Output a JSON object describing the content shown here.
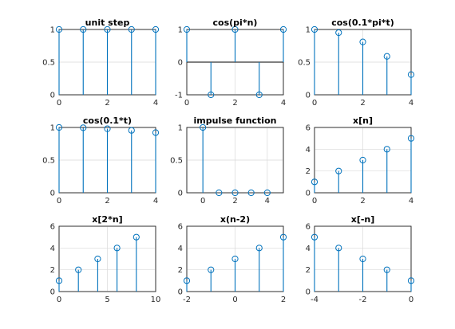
{
  "figure": {
    "stem_color": "#0072BD",
    "background": "#ffffff",
    "grid": true
  },
  "chart_data": [
    {
      "type": "stem",
      "title": "unit step",
      "x": [
        0,
        1,
        2,
        3,
        4
      ],
      "y": [
        1,
        1,
        1,
        1,
        1
      ],
      "xlim": [
        0,
        4
      ],
      "ylim": [
        0,
        1
      ],
      "xticks": [
        0,
        2,
        4
      ],
      "yticks": [
        0,
        0.5,
        1
      ],
      "xticklabels": [
        "0",
        "2",
        "4"
      ],
      "yticklabels": [
        "0",
        "0.5",
        "1"
      ]
    },
    {
      "type": "stem",
      "title": "cos(pi*n)",
      "x": [
        0,
        1,
        2,
        3,
        4
      ],
      "y": [
        1,
        -1,
        1,
        -1,
        1
      ],
      "xlim": [
        0,
        4
      ],
      "ylim": [
        -1,
        1
      ],
      "xticks": [
        0,
        2,
        4
      ],
      "yticks": [
        -1,
        0,
        1
      ],
      "xticklabels": [
        "0",
        "2",
        "4"
      ],
      "yticklabels": [
        "-1",
        "0",
        "1"
      ],
      "zero_line": true
    },
    {
      "type": "stem",
      "title": "cos(0.1*pi*t)",
      "x": [
        0,
        1,
        2,
        3,
        4
      ],
      "y": [
        1,
        0.951,
        0.809,
        0.588,
        0.309
      ],
      "xlim": [
        0,
        4
      ],
      "ylim": [
        0,
        1
      ],
      "xticks": [
        0,
        2,
        4
      ],
      "yticks": [
        0,
        0.5,
        1
      ],
      "xticklabels": [
        "0",
        "2",
        "4"
      ],
      "yticklabels": [
        "0",
        "0.5",
        "1"
      ]
    },
    {
      "type": "stem",
      "title": "cos(0.1*t)",
      "x": [
        0,
        1,
        2,
        3,
        4
      ],
      "y": [
        1,
        0.995,
        0.98,
        0.955,
        0.921
      ],
      "xlim": [
        0,
        4
      ],
      "ylim": [
        0,
        1
      ],
      "xticks": [
        0,
        2,
        4
      ],
      "yticks": [
        0,
        0.5,
        1
      ],
      "xticklabels": [
        "0",
        "2",
        "4"
      ],
      "yticklabels": [
        "0",
        "0.5",
        "1"
      ]
    },
    {
      "type": "stem",
      "title": "impulse function",
      "x": [
        0,
        1,
        2,
        3,
        4
      ],
      "y": [
        1,
        0,
        0,
        0,
        0
      ],
      "xlim": [
        -1,
        5
      ],
      "ylim": [
        0,
        1
      ],
      "xticks": [
        0,
        2,
        4
      ],
      "yticks": [
        0,
        0.5,
        1
      ],
      "xticklabels": [
        "0",
        "2",
        "4"
      ],
      "yticklabels": [
        "0",
        "0.5",
        "1"
      ]
    },
    {
      "type": "stem",
      "title": "x[n]",
      "x": [
        0,
        1,
        2,
        3,
        4
      ],
      "y": [
        1,
        2,
        3,
        4,
        5
      ],
      "xlim": [
        0,
        4
      ],
      "ylim": [
        0,
        6
      ],
      "xticks": [
        0,
        2,
        4
      ],
      "yticks": [
        0,
        2,
        4,
        6
      ],
      "xticklabels": [
        "0",
        "2",
        "4"
      ],
      "yticklabels": [
        "0",
        "2",
        "4",
        "6"
      ]
    },
    {
      "type": "stem",
      "title": "x[2*n]",
      "x": [
        0,
        2,
        4,
        6,
        8
      ],
      "y": [
        1,
        2,
        3,
        4,
        5
      ],
      "xlim": [
        0,
        10
      ],
      "ylim": [
        0,
        6
      ],
      "xticks": [
        0,
        5,
        10
      ],
      "yticks": [
        0,
        2,
        4,
        6
      ],
      "xticklabels": [
        "0",
        "5",
        "10"
      ],
      "yticklabels": [
        "0",
        "2",
        "4",
        "6"
      ]
    },
    {
      "type": "stem",
      "title": "x(n-2)",
      "x": [
        -2,
        -1,
        0,
        1,
        2
      ],
      "y": [
        1,
        2,
        3,
        4,
        5
      ],
      "xlim": [
        -2,
        2
      ],
      "ylim": [
        0,
        6
      ],
      "xticks": [
        -2,
        0,
        2
      ],
      "yticks": [
        0,
        2,
        4,
        6
      ],
      "xticklabels": [
        "-2",
        "0",
        "2"
      ],
      "yticklabels": [
        "0",
        "2",
        "4",
        "6"
      ]
    },
    {
      "type": "stem",
      "title": "x[-n]",
      "x": [
        -4,
        -3,
        -2,
        -1,
        0
      ],
      "y": [
        5,
        4,
        3,
        2,
        1
      ],
      "xlim": [
        -4,
        0
      ],
      "ylim": [
        0,
        6
      ],
      "xticks": [
        -4,
        -2,
        0
      ],
      "yticks": [
        0,
        2,
        4,
        6
      ],
      "xticklabels": [
        "-4",
        "-2",
        "0"
      ],
      "yticklabels": [
        "0",
        "2",
        "4",
        "6"
      ]
    }
  ]
}
